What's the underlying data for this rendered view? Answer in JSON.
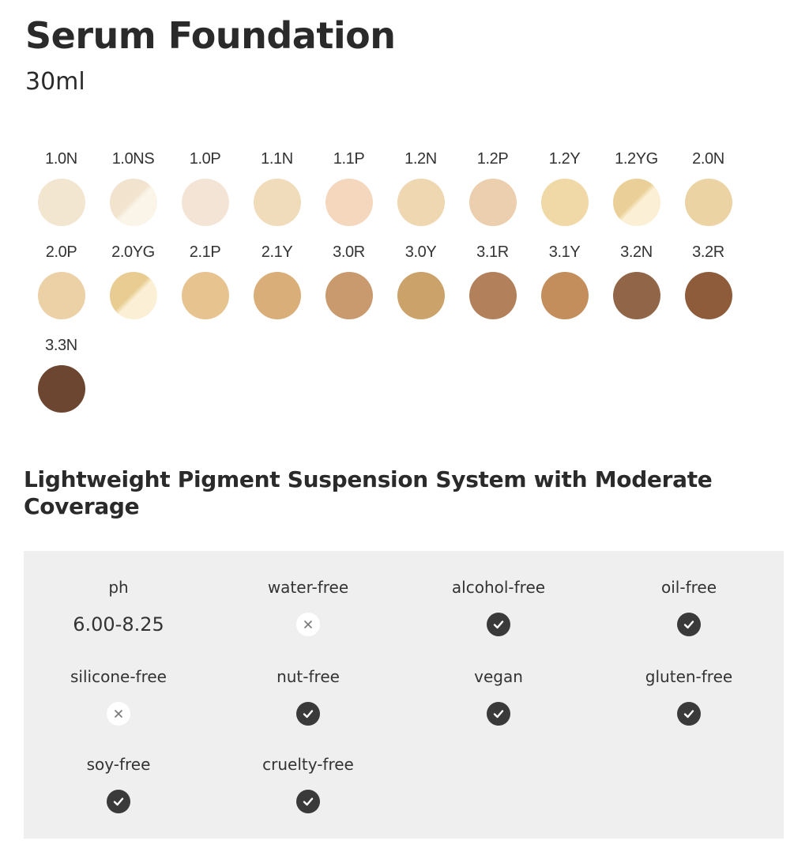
{
  "product": {
    "title": "Serum Foundation",
    "size": "30ml"
  },
  "shades": [
    {
      "label": "1.0N",
      "color": "#f3e6d0"
    },
    {
      "label": "1.0NS",
      "color": "#f1e3cd",
      "color2": "#fbf4e8"
    },
    {
      "label": "1.0P",
      "color": "#f4e4d6"
    },
    {
      "label": "1.1N",
      "color": "#f0dcbb"
    },
    {
      "label": "1.1P",
      "color": "#f5d7bd"
    },
    {
      "label": "1.2N",
      "color": "#eed7b1"
    },
    {
      "label": "1.2P",
      "color": "#ebcfae"
    },
    {
      "label": "1.2Y",
      "color": "#f1d9a7"
    },
    {
      "label": "1.2YG",
      "color": "#ead098",
      "color2": "#fbf0d6"
    },
    {
      "label": "2.0N",
      "color": "#ecd3a4"
    },
    {
      "label": "2.0P",
      "color": "#ecd0a6"
    },
    {
      "label": "2.0YG",
      "color": "#e8cc92",
      "color2": "#fbf0d5"
    },
    {
      "label": "2.1P",
      "color": "#e6c38f"
    },
    {
      "label": "2.1Y",
      "color": "#d9ae78"
    },
    {
      "label": "3.0R",
      "color": "#c99a6e"
    },
    {
      "label": "3.0Y",
      "color": "#cba26a"
    },
    {
      "label": "3.1R",
      "color": "#b3805c"
    },
    {
      "label": "3.1Y",
      "color": "#c48d5c"
    },
    {
      "label": "3.2N",
      "color": "#916547"
    },
    {
      "label": "3.2R",
      "color": "#8e5c3b"
    },
    {
      "label": "3.3N",
      "color": "#6c4630"
    }
  ],
  "subtitle": "Lightweight Pigment Suspension System with Moderate Coverage",
  "attributes": [
    {
      "label": "ph",
      "value": "6.00-8.25"
    },
    {
      "label": "water-free",
      "status": "cross"
    },
    {
      "label": "alcohol-free",
      "status": "check"
    },
    {
      "label": "oil-free",
      "status": "check"
    },
    {
      "label": "silicone-free",
      "status": "cross"
    },
    {
      "label": "nut-free",
      "status": "check"
    },
    {
      "label": "vegan",
      "status": "check"
    },
    {
      "label": "gluten-free",
      "status": "check"
    },
    {
      "label": "soy-free",
      "status": "check"
    },
    {
      "label": "cruelty-free",
      "status": "check"
    }
  ]
}
